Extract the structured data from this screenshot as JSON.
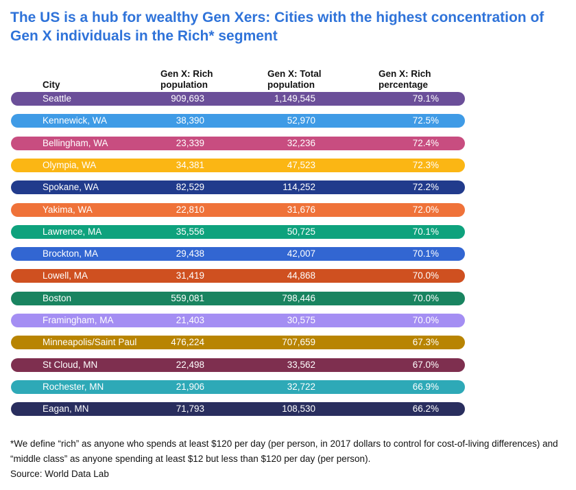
{
  "chart_data": {
    "type": "table",
    "title": "The US is a hub for wealthy Gen Xers: Cities with the highest concentration of Gen X individuals in the Rich* segment",
    "columns": {
      "city": "City",
      "rich": "Gen X: Rich population",
      "total": "Gen X: Total population",
      "pct": "Gen X: Rich percentage"
    },
    "rows": [
      {
        "city": "Seattle",
        "rich": "909,693",
        "total": "1,149,545",
        "pct": "79.1%",
        "color": "#6b4f99"
      },
      {
        "city": "Kennewick, WA",
        "rich": "38,390",
        "total": "52,970",
        "pct": "72.5%",
        "color": "#3f9be6"
      },
      {
        "city": "Bellingham, WA",
        "rich": "23,339",
        "total": "32,236",
        "pct": "72.4%",
        "color": "#c84d80"
      },
      {
        "city": "Olympia, WA",
        "rich": "34,381",
        "total": "47,523",
        "pct": "72.3%",
        "color": "#fbb614"
      },
      {
        "city": "Spokane, WA",
        "rich": "82,529",
        "total": "114,252",
        "pct": "72.2%",
        "color": "#213b8c"
      },
      {
        "city": "Yakima, WA",
        "rich": "22,810",
        "total": "31,676",
        "pct": "72.0%",
        "color": "#ef7239"
      },
      {
        "city": "Lawrence, MA",
        "rich": "35,556",
        "total": "50,725",
        "pct": "70.1%",
        "color": "#0ea27d"
      },
      {
        "city": "Brockton, MA",
        "rich": "29,438",
        "total": "42,007",
        "pct": "70.1%",
        "color": "#3266d2"
      },
      {
        "city": "Lowell, MA",
        "rich": "31,419",
        "total": "44,868",
        "pct": "70.0%",
        "color": "#cf5020"
      },
      {
        "city": "Boston",
        "rich": "559,081",
        "total": "798,446",
        "pct": "70.0%",
        "color": "#198460"
      },
      {
        "city": "Framingham, MA",
        "rich": "21,403",
        "total": "30,575",
        "pct": "70.0%",
        "color": "#a48ef3"
      },
      {
        "city": "Minneapolis/Saint Paul",
        "rich": "476,224",
        "total": "707,659",
        "pct": "67.3%",
        "color": "#b88402"
      },
      {
        "city": "St  Cloud, MN",
        "rich": "22,498",
        "total": "33,562",
        "pct": "67.0%",
        "color": "#7e2f4f"
      },
      {
        "city": "Rochester, MN",
        "rich": "21,906",
        "total": "32,722",
        "pct": "66.9%",
        "color": "#2ea9b7"
      },
      {
        "city": "Eagan, MN",
        "rich": "71,793",
        "total": "108,530",
        "pct": "66.2%",
        "color": "#292e5e"
      }
    ]
  },
  "footnote": "*We define “rich” as anyone who spends at least $120 per day (per person, in 2017 dollars to control for cost-of-living differences) and “middle class” as anyone spending at least $12 but less than $120 per day (per person).",
  "source": "Source: World Data Lab"
}
